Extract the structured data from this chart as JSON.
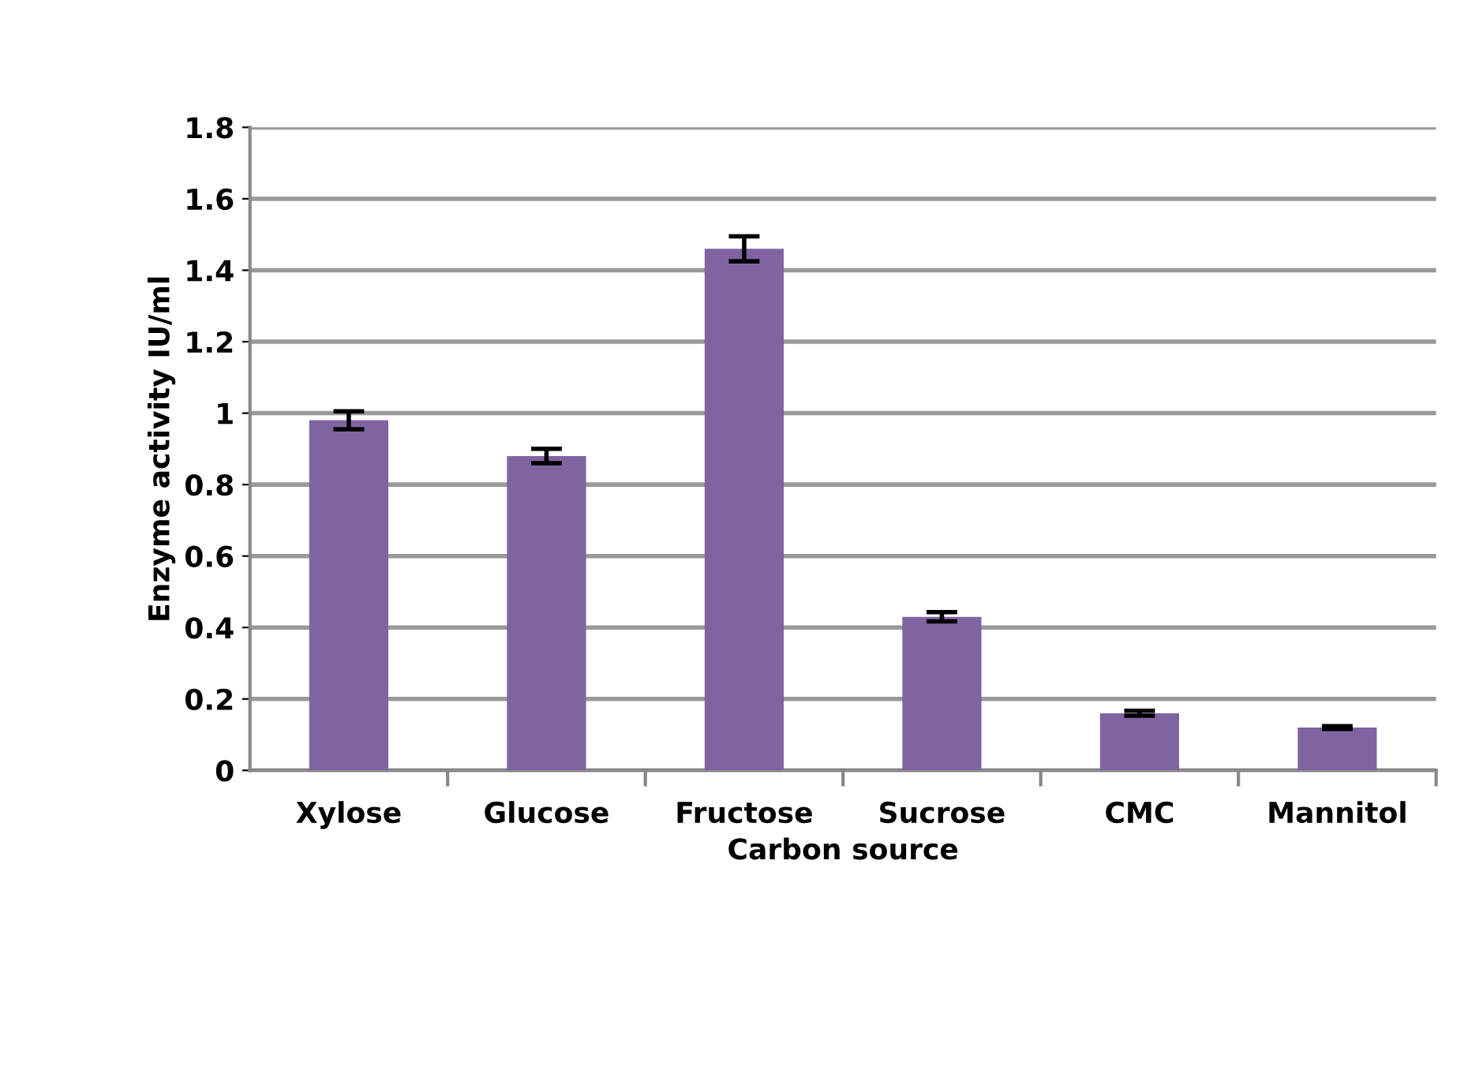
{
  "chart_data": {
    "type": "bar",
    "xlabel": "Carbon source",
    "ylabel": "Enzyme activity IU/ml",
    "categories": [
      "Xylose",
      "Glucose",
      "Fructose",
      "Sucrose",
      "CMC",
      "Mannitol"
    ],
    "values": [
      0.98,
      0.88,
      1.46,
      0.43,
      0.16,
      0.12
    ],
    "errors": [
      0.025,
      0.02,
      0.035,
      0.013,
      0.007,
      0.004
    ],
    "color": "#8064a2",
    "ylim": [
      0,
      1.8
    ],
    "yticks": [
      0,
      0.2,
      0.4,
      0.6,
      0.8,
      1,
      1.2,
      1.4,
      1.6,
      1.8
    ],
    "grid": "y",
    "legend": false
  }
}
